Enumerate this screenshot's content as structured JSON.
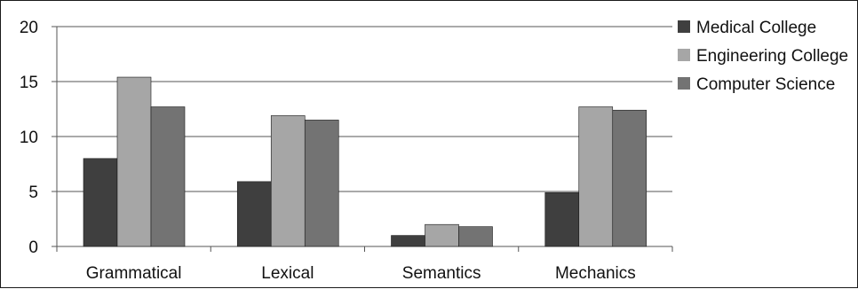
{
  "chart_data": {
    "type": "bar",
    "categories": [
      "Grammatical",
      "Lexical",
      "Semantics",
      "Mechanics"
    ],
    "series": [
      {
        "name": "Medical College",
        "color": "#3f3f3f",
        "values": [
          8,
          5.9,
          1,
          4.9
        ]
      },
      {
        "name": "Engineering College",
        "color": "#a6a6a6",
        "values": [
          15.4,
          11.9,
          2,
          12.7
        ]
      },
      {
        "name": "Computer Science",
        "color": "#737373",
        "values": [
          12.7,
          11.5,
          1.8,
          12.4
        ]
      }
    ],
    "yticks": [
      0,
      5,
      10,
      15,
      20
    ],
    "ylim": [
      0,
      20
    ],
    "grid": true,
    "legend_position": "right",
    "title": "",
    "xlabel": "",
    "ylabel": ""
  }
}
